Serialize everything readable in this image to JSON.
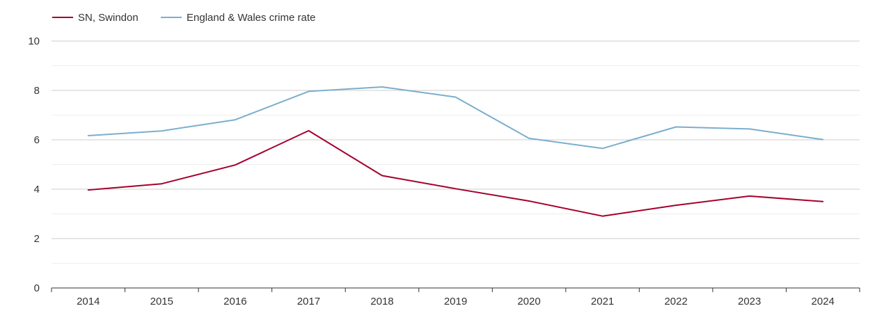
{
  "chart_data": {
    "type": "line",
    "title": "",
    "xlabel": "",
    "ylabel": "",
    "ylim": [
      0,
      10
    ],
    "yticks": [
      0,
      2,
      4,
      6,
      8,
      10
    ],
    "grid": true,
    "legend_position": "top-left",
    "categories": [
      "2014",
      "2015",
      "2016",
      "2017",
      "2018",
      "2019",
      "2020",
      "2021",
      "2022",
      "2023",
      "2024"
    ],
    "series": [
      {
        "name": "SN, Swindon",
        "color": "#a5002d",
        "values": [
          3.97,
          4.22,
          4.98,
          6.37,
          4.55,
          4.02,
          3.52,
          2.91,
          3.35,
          3.72,
          3.5
        ]
      },
      {
        "name": "England & Wales crime rate",
        "color": "#7aaecd",
        "values": [
          6.17,
          6.36,
          6.81,
          7.96,
          8.14,
          7.73,
          6.06,
          5.65,
          6.52,
          6.44,
          6.01
        ]
      }
    ]
  }
}
